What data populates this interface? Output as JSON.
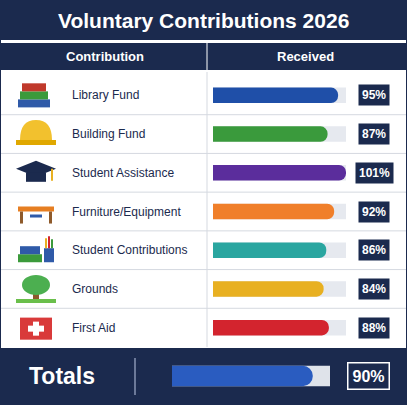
{
  "chart_data": [
    {
      "type": "bar",
      "orientation": "horizontal",
      "title": "Voluntary Contributions 2026",
      "y_label": "Contribution",
      "x_label": "Received",
      "categories": [
        "Library Fund",
        "Building Fund",
        "Student Assistance",
        "Furniture/Equipment",
        "Student Contributions",
        "Grounds",
        "First Aid"
      ],
      "values": [
        95,
        87,
        101,
        92,
        86,
        84,
        88
      ],
      "value_labels": [
        "95%",
        "87%",
        "101%",
        "92%",
        "86%",
        "84%",
        "88%"
      ],
      "colors": [
        "#1f4fa8",
        "#3a9a3c",
        "#5b2d9c",
        "#f07f2a",
        "#2aa6a0",
        "#e8b021",
        "#d3242e"
      ],
      "xlim": [
        0,
        101
      ],
      "xticks": [],
      "data_labels": true
    },
    {
      "type": "bar",
      "orientation": "horizontal",
      "categories": [
        "Totals"
      ],
      "values": [
        90
      ],
      "value_labels": [
        "90%"
      ],
      "color": "#2a5cc0",
      "xlim": [
        0,
        101
      ],
      "xticks": [],
      "data_labels": true
    }
  ]
}
